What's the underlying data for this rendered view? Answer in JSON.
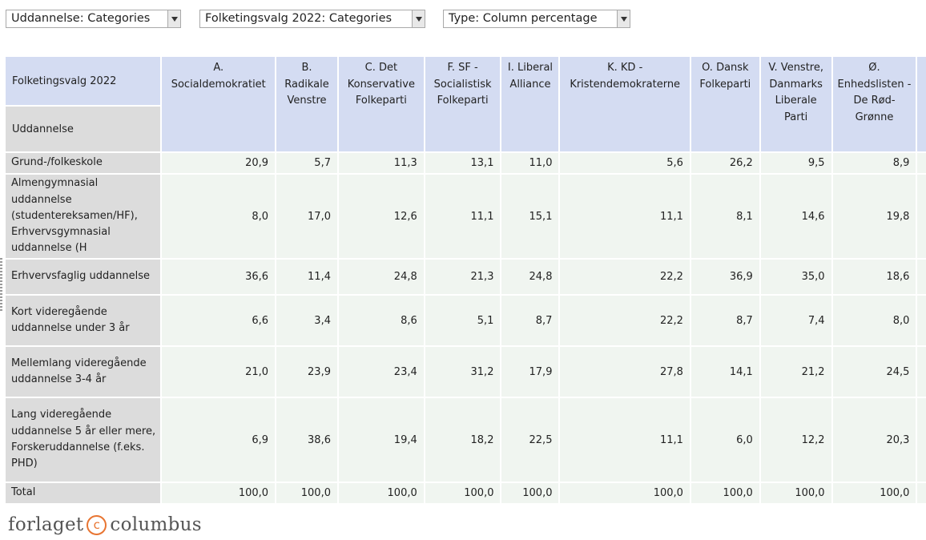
{
  "selectors": {
    "education": "Uddannelse: Categories",
    "election": "Folketingsvalg 2022: Categories",
    "type": "Type: Column percentage"
  },
  "table": {
    "col_dimension": "Folketingsvalg 2022",
    "row_dimension": "Uddannelse",
    "columns": [
      "A. Socialdemokratiet",
      "B. Radikale Venstre",
      "C. Det Konservative Folkeparti",
      "F. SF - Socialistisk Folkeparti",
      "I. Liberal Alliance",
      "K. KD - Kristendemokraterne",
      "O. Dansk Folkeparti",
      "V. Venstre, Danmarks Liberale Parti",
      "Ø. Enhedslisten - De Rød-Grønne"
    ],
    "rows": [
      {
        "label": "Grund-/folkeskole",
        "values": [
          "20,9",
          "5,7",
          "11,3",
          "13,1",
          "11,0",
          "5,6",
          "26,2",
          "9,5",
          "8,9"
        ]
      },
      {
        "label": "Almengymnasial uddannelse (studentereksamen/HF), Erhvervsgymnasial uddannelse (H",
        "values": [
          "8,0",
          "17,0",
          "12,6",
          "11,1",
          "15,1",
          "11,1",
          "8,1",
          "14,6",
          "19,8"
        ]
      },
      {
        "label": "Erhvervsfaglig uddannelse",
        "values": [
          "36,6",
          "11,4",
          "24,8",
          "21,3",
          "24,8",
          "22,2",
          "36,9",
          "35,0",
          "18,6"
        ]
      },
      {
        "label": "Kort videregående uddannelse under 3 år",
        "values": [
          "6,6",
          "3,4",
          "8,6",
          "5,1",
          "8,7",
          "22,2",
          "8,7",
          "7,4",
          "8,0"
        ]
      },
      {
        "label": "Mellemlang videregående uddannelse 3-4 år",
        "values": [
          "21,0",
          "23,9",
          "23,4",
          "31,2",
          "17,9",
          "27,8",
          "14,1",
          "21,2",
          "24,5"
        ]
      },
      {
        "label": "Lang videregående uddannelse 5 år eller mere, Forskeruddannelse (f.eks. PHD)",
        "values": [
          "6,9",
          "38,6",
          "19,4",
          "18,2",
          "22,5",
          "11,1",
          "6,0",
          "12,2",
          "20,3"
        ]
      },
      {
        "label": "Total",
        "values": [
          "100,0",
          "100,0",
          "100,0",
          "100,0",
          "100,0",
          "100,0",
          "100,0",
          "100,0",
          "100,0"
        ]
      }
    ]
  },
  "footer": {
    "logo_left": "forlaget",
    "logo_mark": "c",
    "logo_right": "columbus"
  },
  "colors": {
    "header_blue": "#d4dcf2",
    "row_header_gray": "#dcdcdc",
    "cell_green": "#f0f5f0",
    "logo_accent": "#e87532"
  }
}
